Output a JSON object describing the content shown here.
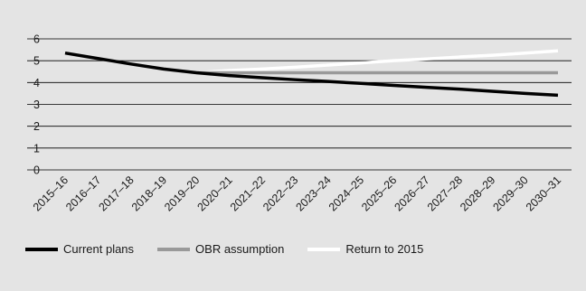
{
  "chart_data": {
    "type": "line",
    "categories": [
      "2015–16",
      "2016–17",
      "2017–18",
      "2018–19",
      "2019–20",
      "2020–21",
      "2021–22",
      "2022–23",
      "2023–24",
      "2024–25",
      "2025–26",
      "2026–27",
      "2027–28",
      "2028–29",
      "2029–30",
      "2030–31"
    ],
    "ylim": [
      0,
      6
    ],
    "yticks": [
      "0",
      "1",
      "2",
      "3",
      "4",
      "5",
      "6"
    ],
    "grid": true,
    "legend_position": "bottom-left",
    "series": [
      {
        "name": "Current plans",
        "color": "#000000",
        "values": [
          5.35,
          5.1,
          4.85,
          4.62,
          4.45,
          4.32,
          4.22,
          4.13,
          4.05,
          3.96,
          3.87,
          3.78,
          3.7,
          3.6,
          3.5,
          3.42
        ]
      },
      {
        "name": "OBR assumption",
        "color": "#999999",
        "values": [
          null,
          null,
          null,
          null,
          4.45,
          4.45,
          4.45,
          4.45,
          4.45,
          4.45,
          4.45,
          4.45,
          4.45,
          4.45,
          4.45,
          4.45
        ]
      },
      {
        "name": "Return to 2015",
        "color": "#ffffff",
        "values": [
          null,
          null,
          null,
          null,
          4.45,
          4.55,
          4.62,
          4.7,
          4.8,
          4.9,
          5.0,
          5.08,
          5.17,
          5.25,
          5.35,
          5.45
        ]
      }
    ]
  }
}
